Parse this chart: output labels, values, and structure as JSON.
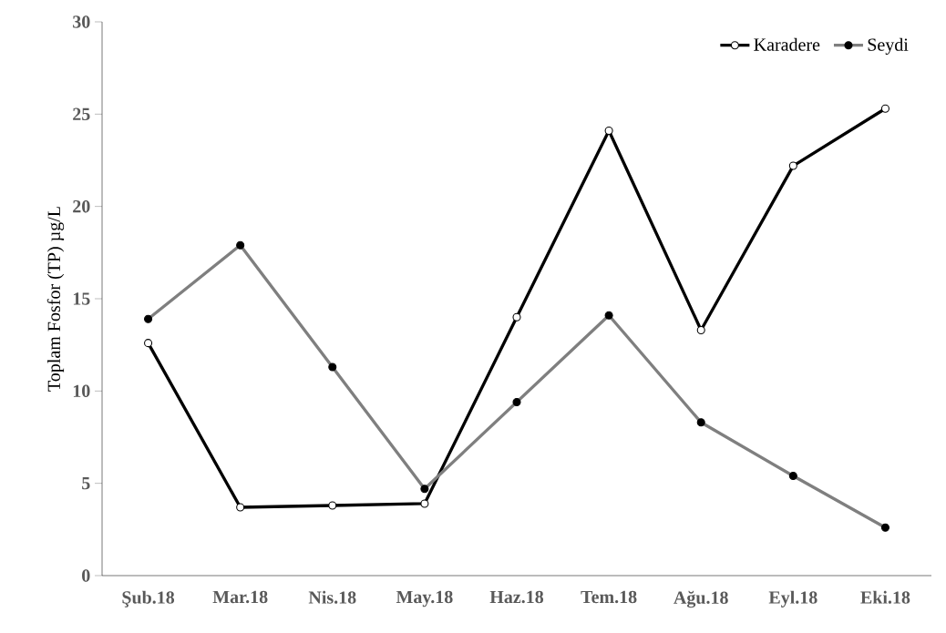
{
  "chart_data": {
    "type": "line",
    "ylabel": "Toplam Fosfor (TP) µg/L",
    "categories": [
      "Şub.18",
      "Mar.18",
      "Nis.18",
      "May.18",
      "Haz.18",
      "Tem.18",
      "Ağu.18",
      "Eyl.18",
      "Eki.18"
    ],
    "series": [
      {
        "name": "Karadere",
        "color": "#000000",
        "values": [
          12.6,
          3.7,
          3.8,
          3.9,
          14.0,
          24.1,
          13.3,
          22.2,
          25.3
        ]
      },
      {
        "name": "Seydi",
        "color": "#7f7f7f",
        "values": [
          13.9,
          17.9,
          11.3,
          4.7,
          9.4,
          14.1,
          8.3,
          5.4,
          2.6
        ]
      }
    ],
    "ylim": [
      0,
      30
    ],
    "yticks": [
      0,
      5,
      10,
      15,
      20,
      25,
      30
    ],
    "grid": false,
    "legend": "top right",
    "marker": "circle",
    "line_style": "solid"
  }
}
